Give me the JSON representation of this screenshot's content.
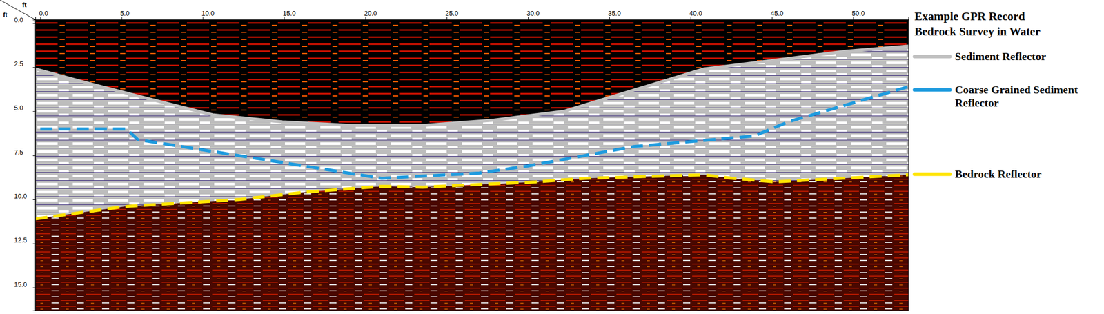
{
  "chart_data": {
    "type": "line",
    "title": "Example GPR Record",
    "subtitle": "Bedrock Survey in Water",
    "x_label": "ft",
    "y_label": "ft",
    "xlim": [
      -0.3,
      53.4
    ],
    "ylim": [
      -0.2,
      16.3
    ],
    "xticks": [
      {
        "value": 0,
        "label": "0.0"
      },
      {
        "value": 5,
        "label": "5.0"
      },
      {
        "value": 10,
        "label": "10.0"
      },
      {
        "value": 15,
        "label": "15.0"
      },
      {
        "value": 20,
        "label": "20.0"
      },
      {
        "value": 25,
        "label": "25.0"
      },
      {
        "value": 30,
        "label": "30.0"
      },
      {
        "value": 35,
        "label": "35.0"
      },
      {
        "value": 40,
        "label": "40.0"
      },
      {
        "value": 45,
        "label": "45.0"
      },
      {
        "value": 50,
        "label": "50.0"
      }
    ],
    "yticks": [
      {
        "value": 0,
        "label": "0.0"
      },
      {
        "value": 2.5,
        "label": "2.5"
      },
      {
        "value": 5,
        "label": "5.0"
      },
      {
        "value": 7.5,
        "label": "7.5"
      },
      {
        "value": 10,
        "label": "10.0"
      },
      {
        "value": 12.5,
        "label": "12.5"
      },
      {
        "value": 15,
        "label": "15.0"
      }
    ],
    "grid": false,
    "legend": "right",
    "series": [
      {
        "name": "Sediment Reflector",
        "color": "#c0c0c0",
        "line_style": "solid",
        "x": [
          -0.3,
          2.5,
          6.3,
          10.6,
          14.9,
          19.2,
          23.5,
          27.9,
          32.2,
          36.5,
          40.8,
          45.2,
          49.5,
          53.4
        ],
        "values": [
          2.6,
          3.3,
          4.2,
          5.2,
          5.6,
          5.8,
          5.8,
          5.5,
          5.0,
          3.8,
          2.6,
          2.1,
          1.6,
          1.3
        ]
      },
      {
        "name": "Coarse Grained Sediment Reflector",
        "color": "#1f9bde",
        "line_style": "dashed",
        "x": [
          0,
          5.3,
          6.0,
          21.0,
          27.0,
          30.0,
          36.5,
          43.9,
          46.0,
          53.4
        ],
        "values": [
          6.0,
          6.0,
          6.6,
          8.8,
          8.5,
          8.1,
          7.0,
          6.4,
          5.6,
          3.6
        ]
      },
      {
        "name": "Bedrock Reflector",
        "color": "#ffe400",
        "line_style": "dashed",
        "x": [
          -0.3,
          5.2,
          12.3,
          16.1,
          21.0,
          23.5,
          30.5,
          33.5,
          40.8,
          42.6,
          45.2,
          53.4
        ],
        "values": [
          11.1,
          10.4,
          10.0,
          9.6,
          9.25,
          9.3,
          9.0,
          8.8,
          8.6,
          8.8,
          9.0,
          8.6
        ]
      }
    ]
  }
}
